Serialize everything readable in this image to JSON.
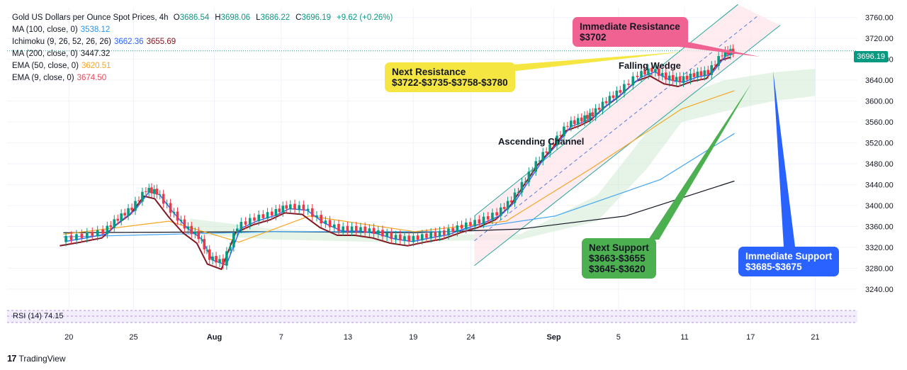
{
  "legend": {
    "title": "Gold US Dollars per Ounce Spot Prices, 4h",
    "ohlc": [
      {
        "k": "O",
        "v": "3686.54"
      },
      {
        "k": "H",
        "v": "3698.06"
      },
      {
        "k": "L",
        "v": "3686.22"
      },
      {
        "k": "C",
        "v": "3696.19"
      },
      {
        "k": "",
        "v": "+9.62 (+0.26%)"
      }
    ],
    "indicators": [
      {
        "label": "MA (100, close, 0)",
        "values": [
          "3538.12"
        ],
        "colors": [
          "#2196f3"
        ]
      },
      {
        "label": "Ichimoku (9, 26, 52, 26, 26)",
        "values": [
          "3662.36",
          "3655.69"
        ],
        "colors": [
          "#2962ff",
          "#801922"
        ]
      },
      {
        "label": "MA (200, close, 0)",
        "values": [
          "3447.32"
        ],
        "colors": [
          "#131722"
        ]
      },
      {
        "label": "EMA (50, close, 0)",
        "values": [
          "3620.51"
        ],
        "colors": [
          "#f5a623"
        ]
      },
      {
        "label": "EMA (9, close, 0)",
        "values": [
          "3674.50"
        ],
        "colors": [
          "#e64a5a"
        ]
      }
    ]
  },
  "last_price": "3696.19",
  "annotations": {
    "immediate_resistance": {
      "lines": [
        "Immediate Resistance",
        "$3702"
      ],
      "color": "#f06292"
    },
    "next_resistance": {
      "lines": [
        "Next Resistance",
        "$3722-$3735-$3758-$3780"
      ],
      "color": "#f5e642"
    },
    "next_support": {
      "lines": [
        "Next Support",
        "$3663-$3655",
        "$3645-$3620"
      ],
      "color": "#4caf50"
    },
    "immediate_support": {
      "lines": [
        "Immediate Support",
        "$3685-$3675"
      ],
      "color": "#2962ff"
    }
  },
  "labels": {
    "falling_wedge": "Falling Wedge",
    "ascending_channel": "Ascending Channel",
    "rsi": "RSI (14)  74.15"
  },
  "brand": "TradingView",
  "chart_data": {
    "type": "line",
    "title": "Gold US Dollars per Ounce Spot Prices, 4h",
    "y_ticks": [
      3240,
      3280,
      3320,
      3360,
      3400,
      3440,
      3480,
      3520,
      3560,
      3600,
      3640,
      3680,
      3720,
      3760
    ],
    "ylim": [
      3210,
      3780
    ],
    "x_ticks": [
      {
        "label": "20",
        "t": 0.08
      },
      {
        "label": "25",
        "t": 1.0
      },
      {
        "label": "Aug",
        "t": 2.15
      },
      {
        "label": "7",
        "t": 3.1
      },
      {
        "label": "13",
        "t": 4.05
      },
      {
        "label": "19",
        "t": 4.98
      },
      {
        "label": "24",
        "t": 5.8
      },
      {
        "label": "Sep",
        "t": 6.98
      },
      {
        "label": "5",
        "t": 7.9
      },
      {
        "label": "11",
        "t": 8.84
      },
      {
        "label": "17",
        "t": 9.78
      },
      {
        "label": "21",
        "t": 10.7
      }
    ],
    "price_series": {
      "name": "Gold 4h close",
      "points": [
        [
          0,
          3335
        ],
        [
          0.3,
          3342
        ],
        [
          0.6,
          3350
        ],
        [
          0.8,
          3375
        ],
        [
          1.0,
          3395
        ],
        [
          1.2,
          3430
        ],
        [
          1.35,
          3425
        ],
        [
          1.55,
          3390
        ],
        [
          1.75,
          3360
        ],
        [
          1.95,
          3340
        ],
        [
          2.1,
          3300
        ],
        [
          2.3,
          3290
        ],
        [
          2.5,
          3360
        ],
        [
          2.75,
          3375
        ],
        [
          3.0,
          3385
        ],
        [
          3.2,
          3398
        ],
        [
          3.45,
          3395
        ],
        [
          3.7,
          3370
        ],
        [
          3.95,
          3355
        ],
        [
          4.2,
          3355
        ],
        [
          4.45,
          3350
        ],
        [
          4.7,
          3340
        ],
        [
          4.95,
          3335
        ],
        [
          5.2,
          3342
        ],
        [
          5.45,
          3348
        ],
        [
          5.7,
          3360
        ],
        [
          5.95,
          3370
        ],
        [
          6.2,
          3385
        ],
        [
          6.4,
          3410
        ],
        [
          6.6,
          3450
        ],
        [
          6.8,
          3490
        ],
        [
          7.0,
          3520
        ],
        [
          7.2,
          3555
        ],
        [
          7.4,
          3565
        ],
        [
          7.55,
          3575
        ],
        [
          7.75,
          3600
        ],
        [
          7.95,
          3620
        ],
        [
          8.2,
          3650
        ],
        [
          8.4,
          3660
        ],
        [
          8.6,
          3645
        ],
        [
          8.8,
          3640
        ],
        [
          9.0,
          3650
        ],
        [
          9.2,
          3655
        ],
        [
          9.4,
          3690
        ],
        [
          9.55,
          3696
        ]
      ]
    },
    "ma200": {
      "name": "MA (200, close, 0)",
      "points": [
        [
          0,
          3348
        ],
        [
          3,
          3350
        ],
        [
          5,
          3348
        ],
        [
          6.5,
          3355
        ],
        [
          8,
          3380
        ],
        [
          9.55,
          3447
        ]
      ]
    },
    "ma100": {
      "name": "MA (100, close, 0)",
      "points": [
        [
          0,
          3340
        ],
        [
          3,
          3350
        ],
        [
          5.5,
          3350
        ],
        [
          7,
          3380
        ],
        [
          8.5,
          3450
        ],
        [
          9.55,
          3538
        ]
      ]
    },
    "ema50": {
      "name": "EMA (50, close, 0)",
      "points": [
        [
          0,
          3345
        ],
        [
          1.5,
          3370
        ],
        [
          2.5,
          3330
        ],
        [
          3.5,
          3380
        ],
        [
          5,
          3350
        ],
        [
          6.3,
          3370
        ],
        [
          7.5,
          3470
        ],
        [
          8.8,
          3585
        ],
        [
          9.55,
          3620
        ]
      ]
    },
    "channel": {
      "upper": [
        [
          5.85,
          3380
        ],
        [
          9.6,
          3785
        ]
      ],
      "lower": [
        [
          5.85,
          3285
        ],
        [
          10.2,
          3745
        ]
      ]
    }
  }
}
